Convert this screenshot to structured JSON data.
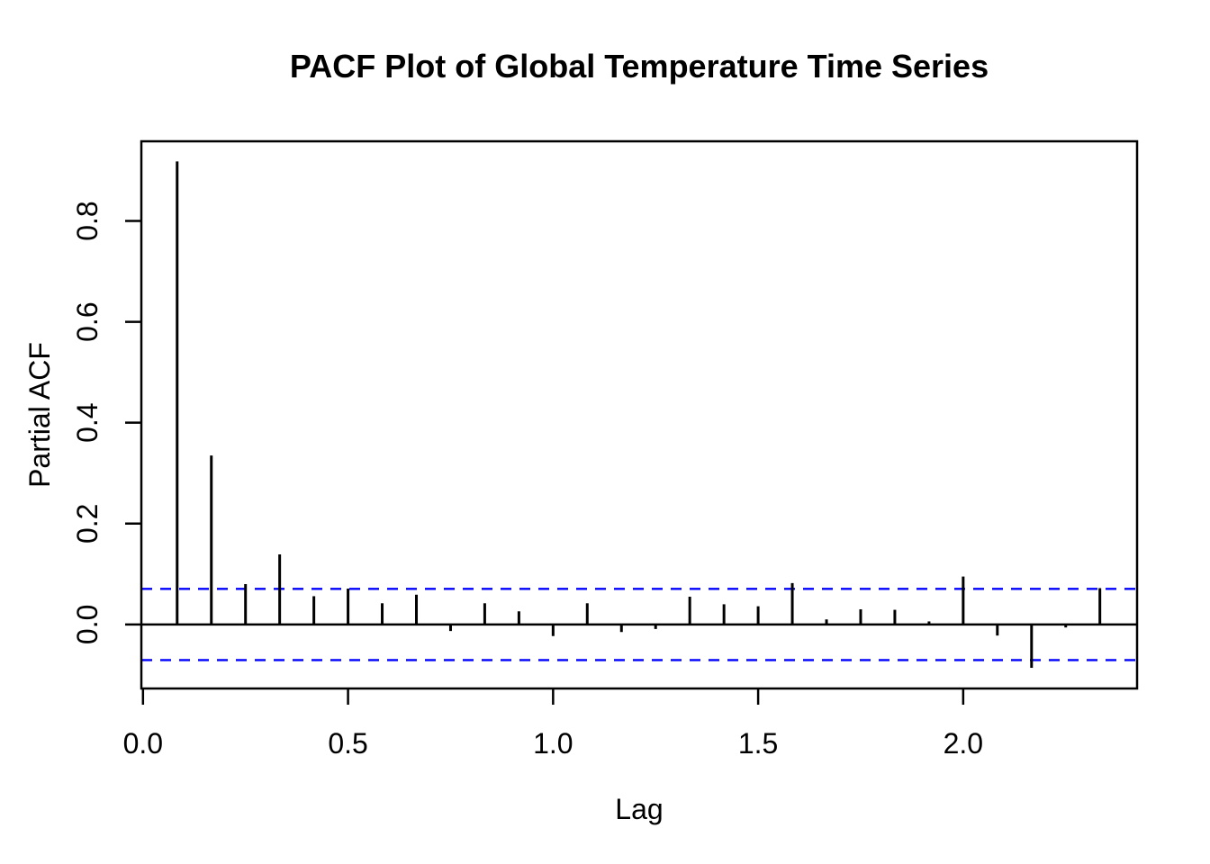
{
  "chart_data": {
    "type": "bar",
    "subtype": "pacf-stem-plot",
    "title": "PACF Plot of Global Temperature Time Series",
    "xlabel": "Lag",
    "ylabel": "Partial ACF",
    "x_ticks": [
      0.0,
      0.5,
      1.0,
      1.5,
      2.0
    ],
    "x_tick_labels": [
      "0.0",
      "0.5",
      "1.0",
      "1.5",
      "2.0"
    ],
    "y_ticks": [
      0.0,
      0.2,
      0.4,
      0.6,
      0.8
    ],
    "y_tick_labels": [
      "0.0",
      "0.2",
      "0.4",
      "0.6",
      "0.8"
    ],
    "x_range": [
      -0.004,
      2.424
    ],
    "y_range": [
      -0.127,
      0.958
    ],
    "grid": false,
    "legend": false,
    "lags": [
      0.0833,
      0.1667,
      0.25,
      0.3333,
      0.4167,
      0.5,
      0.5833,
      0.6667,
      0.75,
      0.8333,
      0.9167,
      1.0,
      1.0833,
      1.1667,
      1.25,
      1.3333,
      1.4167,
      1.5,
      1.5833,
      1.6667,
      1.75,
      1.8333,
      1.9167,
      2.0,
      2.0833,
      2.1667,
      2.25,
      2.3333
    ],
    "values": [
      0.918,
      0.335,
      0.08,
      0.139,
      0.056,
      0.071,
      0.042,
      0.059,
      -0.013,
      0.042,
      0.026,
      -0.023,
      0.042,
      -0.015,
      -0.009,
      0.055,
      0.04,
      0.036,
      0.082,
      0.01,
      0.03,
      0.029,
      0.006,
      0.095,
      -0.022,
      -0.086,
      -0.006,
      0.072
    ],
    "confidence_upper": 0.0706,
    "confidence_lower": -0.0706,
    "colors": {
      "bars": "#000000",
      "axis": "#000000",
      "confidence_lines": "#0000FF",
      "background": "#FFFFFF"
    }
  }
}
